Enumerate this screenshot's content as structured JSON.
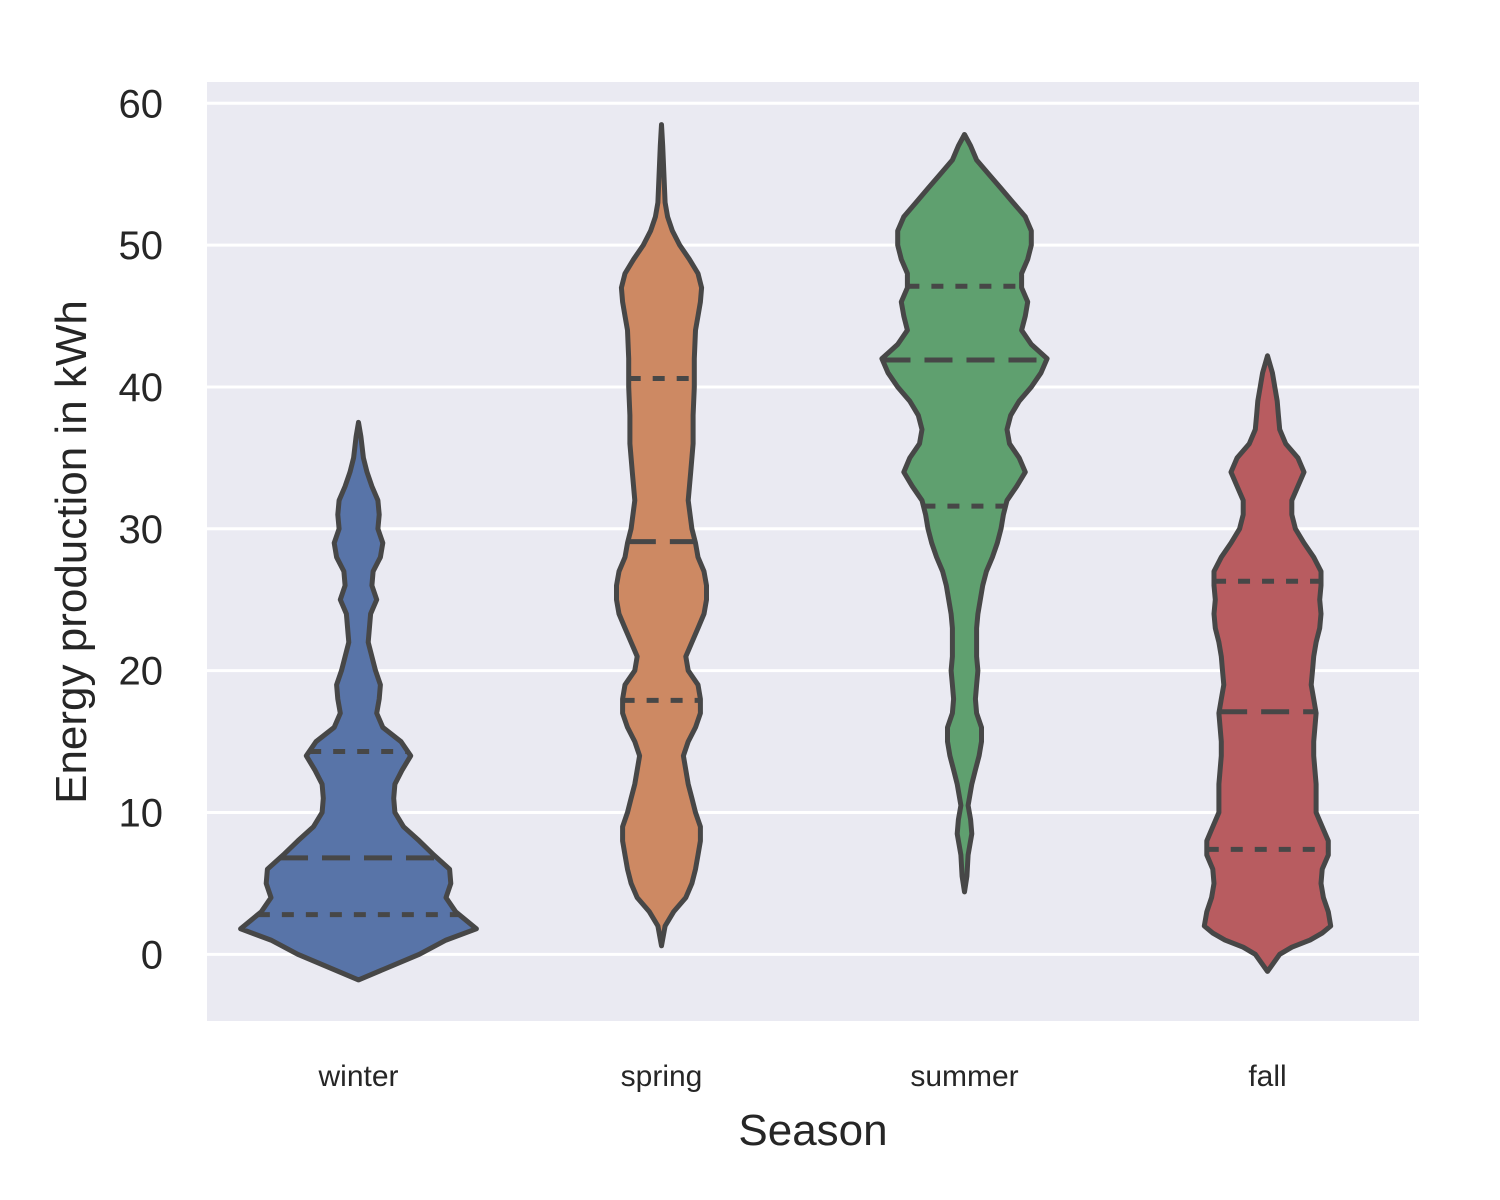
{
  "chart_data": {
    "type": "violin",
    "xlabel": "Season",
    "ylabel": "Energy production in kWh",
    "ylim": [
      -4.7,
      61.5
    ],
    "yticks": [
      0,
      10,
      20,
      30,
      40,
      50,
      60
    ],
    "grid": true,
    "background": "#eaeaf2",
    "categories": [
      "winter",
      "spring",
      "summer",
      "fall"
    ],
    "colors": [
      "#5874a8",
      "#cd8963",
      "#5fa06f",
      "#b85c60"
    ],
    "inner": "quartile",
    "violins": [
      {
        "category": "winter",
        "quartiles": [
          2.8,
          6.8,
          14.3
        ],
        "density": [
          [
            -1.8,
            0
          ],
          [
            0,
            0.5
          ],
          [
            1,
            0.72
          ],
          [
            1.8,
            0.97
          ],
          [
            3,
            0.8
          ],
          [
            4,
            0.72
          ],
          [
            5,
            0.76
          ],
          [
            6,
            0.75
          ],
          [
            7,
            0.62
          ],
          [
            8,
            0.5
          ],
          [
            9,
            0.37
          ],
          [
            10,
            0.3
          ],
          [
            11,
            0.29
          ],
          [
            12,
            0.3
          ],
          [
            13,
            0.36
          ],
          [
            14,
            0.43
          ],
          [
            15,
            0.35
          ],
          [
            16,
            0.2
          ],
          [
            17,
            0.15
          ],
          [
            18,
            0.17
          ],
          [
            19,
            0.18
          ],
          [
            20,
            0.14
          ],
          [
            22,
            0.08
          ],
          [
            24,
            0.1
          ],
          [
            25,
            0.15
          ],
          [
            26,
            0.11
          ],
          [
            27,
            0.12
          ],
          [
            28,
            0.18
          ],
          [
            29,
            0.2
          ],
          [
            30,
            0.16
          ],
          [
            31,
            0.17
          ],
          [
            32,
            0.16
          ],
          [
            33,
            0.11
          ],
          [
            34,
            0.07
          ],
          [
            35,
            0.04
          ],
          [
            36.5,
            0.02
          ],
          [
            37.5,
            0
          ]
        ]
      },
      {
        "category": "spring",
        "quartiles": [
          17.9,
          29.1,
          40.6
        ],
        "density": [
          [
            0.6,
            0
          ],
          [
            2,
            0.03
          ],
          [
            3,
            0.1
          ],
          [
            4,
            0.2
          ],
          [
            5,
            0.25
          ],
          [
            6,
            0.28
          ],
          [
            7,
            0.3
          ],
          [
            8,
            0.32
          ],
          [
            9,
            0.32
          ],
          [
            10,
            0.28
          ],
          [
            11,
            0.25
          ],
          [
            12,
            0.22
          ],
          [
            14,
            0.18
          ],
          [
            15,
            0.22
          ],
          [
            16,
            0.28
          ],
          [
            17,
            0.32
          ],
          [
            18,
            0.32
          ],
          [
            19,
            0.3
          ],
          [
            20,
            0.22
          ],
          [
            21,
            0.2
          ],
          [
            22,
            0.25
          ],
          [
            23,
            0.3
          ],
          [
            24,
            0.35
          ],
          [
            25,
            0.37
          ],
          [
            26,
            0.37
          ],
          [
            27,
            0.35
          ],
          [
            28,
            0.3
          ],
          [
            29,
            0.28
          ],
          [
            30,
            0.25
          ],
          [
            32,
            0.22
          ],
          [
            34,
            0.24
          ],
          [
            36,
            0.26
          ],
          [
            38,
            0.26
          ],
          [
            40,
            0.27
          ],
          [
            42,
            0.27
          ],
          [
            44,
            0.28
          ],
          [
            45,
            0.3
          ],
          [
            46,
            0.32
          ],
          [
            47,
            0.33
          ],
          [
            48,
            0.3
          ],
          [
            49,
            0.23
          ],
          [
            50,
            0.15
          ],
          [
            51,
            0.09
          ],
          [
            52,
            0.05
          ],
          [
            53,
            0.03
          ],
          [
            55,
            0.02
          ],
          [
            57,
            0.01
          ],
          [
            58.5,
            0
          ]
        ]
      },
      {
        "category": "summer",
        "quartiles": [
          31.6,
          41.9,
          47.1
        ],
        "density": [
          [
            4.4,
            0
          ],
          [
            5.5,
            0.02
          ],
          [
            7,
            0.03
          ],
          [
            8.5,
            0.06
          ],
          [
            9.5,
            0.05
          ],
          [
            10.5,
            0.03
          ],
          [
            12,
            0.06
          ],
          [
            13,
            0.09
          ],
          [
            14,
            0.12
          ],
          [
            15,
            0.14
          ],
          [
            16,
            0.14
          ],
          [
            17,
            0.1
          ],
          [
            18,
            0.09
          ],
          [
            19,
            0.1
          ],
          [
            20,
            0.11
          ],
          [
            21,
            0.1
          ],
          [
            22,
            0.1
          ],
          [
            23,
            0.1
          ],
          [
            24,
            0.11
          ],
          [
            25,
            0.13
          ],
          [
            26,
            0.15
          ],
          [
            27,
            0.18
          ],
          [
            28,
            0.23
          ],
          [
            29,
            0.27
          ],
          [
            30,
            0.3
          ],
          [
            31,
            0.32
          ],
          [
            32,
            0.35
          ],
          [
            33,
            0.43
          ],
          [
            34,
            0.5
          ],
          [
            35,
            0.45
          ],
          [
            36,
            0.37
          ],
          [
            37,
            0.35
          ],
          [
            38,
            0.38
          ],
          [
            39,
            0.45
          ],
          [
            40,
            0.55
          ],
          [
            41,
            0.63
          ],
          [
            42,
            0.68
          ],
          [
            43,
            0.55
          ],
          [
            44,
            0.47
          ],
          [
            45,
            0.5
          ],
          [
            46,
            0.52
          ],
          [
            47,
            0.47
          ],
          [
            48,
            0.47
          ],
          [
            49,
            0.52
          ],
          [
            50,
            0.55
          ],
          [
            51,
            0.55
          ],
          [
            52,
            0.5
          ],
          [
            53,
            0.4
          ],
          [
            54,
            0.3
          ],
          [
            55,
            0.2
          ],
          [
            56,
            0.1
          ],
          [
            57,
            0.05
          ],
          [
            57.8,
            0
          ]
        ]
      },
      {
        "category": "fall",
        "quartiles": [
          7.4,
          17.1,
          26.3
        ],
        "density": [
          [
            -1.2,
            0
          ],
          [
            0,
            0.1
          ],
          [
            0.5,
            0.2
          ],
          [
            1,
            0.35
          ],
          [
            1.5,
            0.45
          ],
          [
            2,
            0.52
          ],
          [
            3,
            0.5
          ],
          [
            4,
            0.46
          ],
          [
            5,
            0.44
          ],
          [
            6,
            0.45
          ],
          [
            7,
            0.5
          ],
          [
            8,
            0.5
          ],
          [
            9,
            0.45
          ],
          [
            10,
            0.4
          ],
          [
            11,
            0.4
          ],
          [
            12,
            0.4
          ],
          [
            13,
            0.39
          ],
          [
            14,
            0.38
          ],
          [
            15,
            0.38
          ],
          [
            16,
            0.39
          ],
          [
            17,
            0.4
          ],
          [
            18,
            0.38
          ],
          [
            19,
            0.36
          ],
          [
            20,
            0.37
          ],
          [
            21,
            0.38
          ],
          [
            22,
            0.4
          ],
          [
            23,
            0.43
          ],
          [
            24,
            0.44
          ],
          [
            25,
            0.43
          ],
          [
            26,
            0.44
          ],
          [
            27,
            0.44
          ],
          [
            28,
            0.38
          ],
          [
            29,
            0.3
          ],
          [
            30,
            0.23
          ],
          [
            31,
            0.2
          ],
          [
            32,
            0.2
          ],
          [
            33,
            0.25
          ],
          [
            34,
            0.3
          ],
          [
            35,
            0.25
          ],
          [
            36,
            0.15
          ],
          [
            37,
            0.1
          ],
          [
            38,
            0.09
          ],
          [
            39,
            0.08
          ],
          [
            40,
            0.06
          ],
          [
            41,
            0.04
          ],
          [
            42.2,
            0
          ]
        ]
      }
    ]
  }
}
